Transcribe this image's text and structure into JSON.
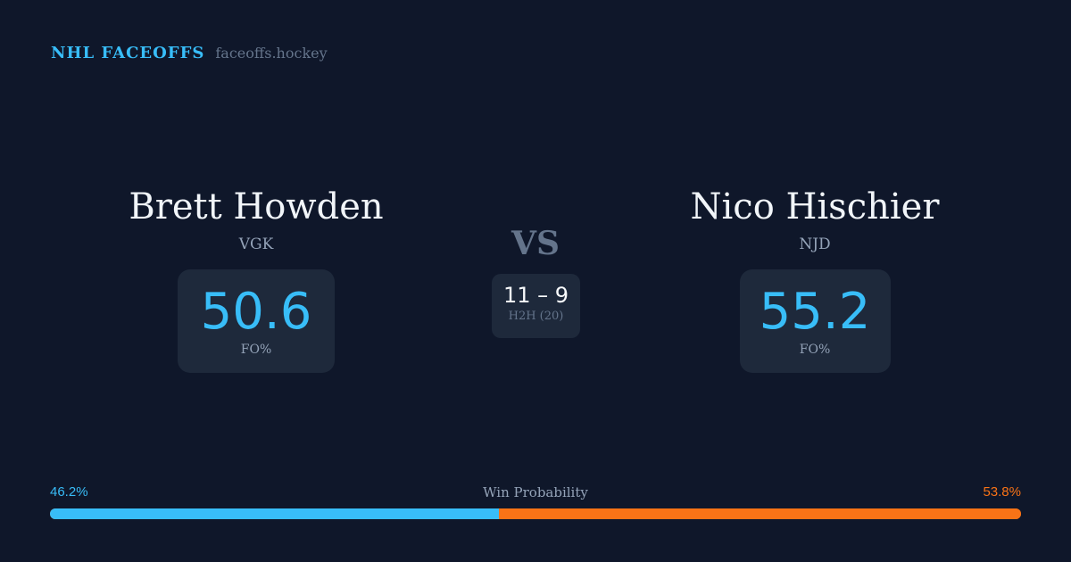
{
  "header": {
    "title": "NHL FACEOFFS",
    "site": "faceoffs.hockey"
  },
  "players": [
    {
      "name": "Brett Howden",
      "team": "VGK",
      "fo_pct": "50.6",
      "fo_label": "FO%"
    },
    {
      "name": "Nico Hischier",
      "team": "NJD",
      "fo_pct": "55.2",
      "fo_label": "FO%"
    }
  ],
  "vs_label": "VS",
  "h2h": {
    "score": "11 – 9",
    "label": "H2H (20)"
  },
  "win_probability": {
    "label": "Win Probability",
    "left_pct_text": "46.2%",
    "right_pct_text": "53.8%",
    "left_value": 46.2,
    "right_value": 53.8,
    "left_color": "#38bdf8",
    "right_color": "#f97316"
  }
}
